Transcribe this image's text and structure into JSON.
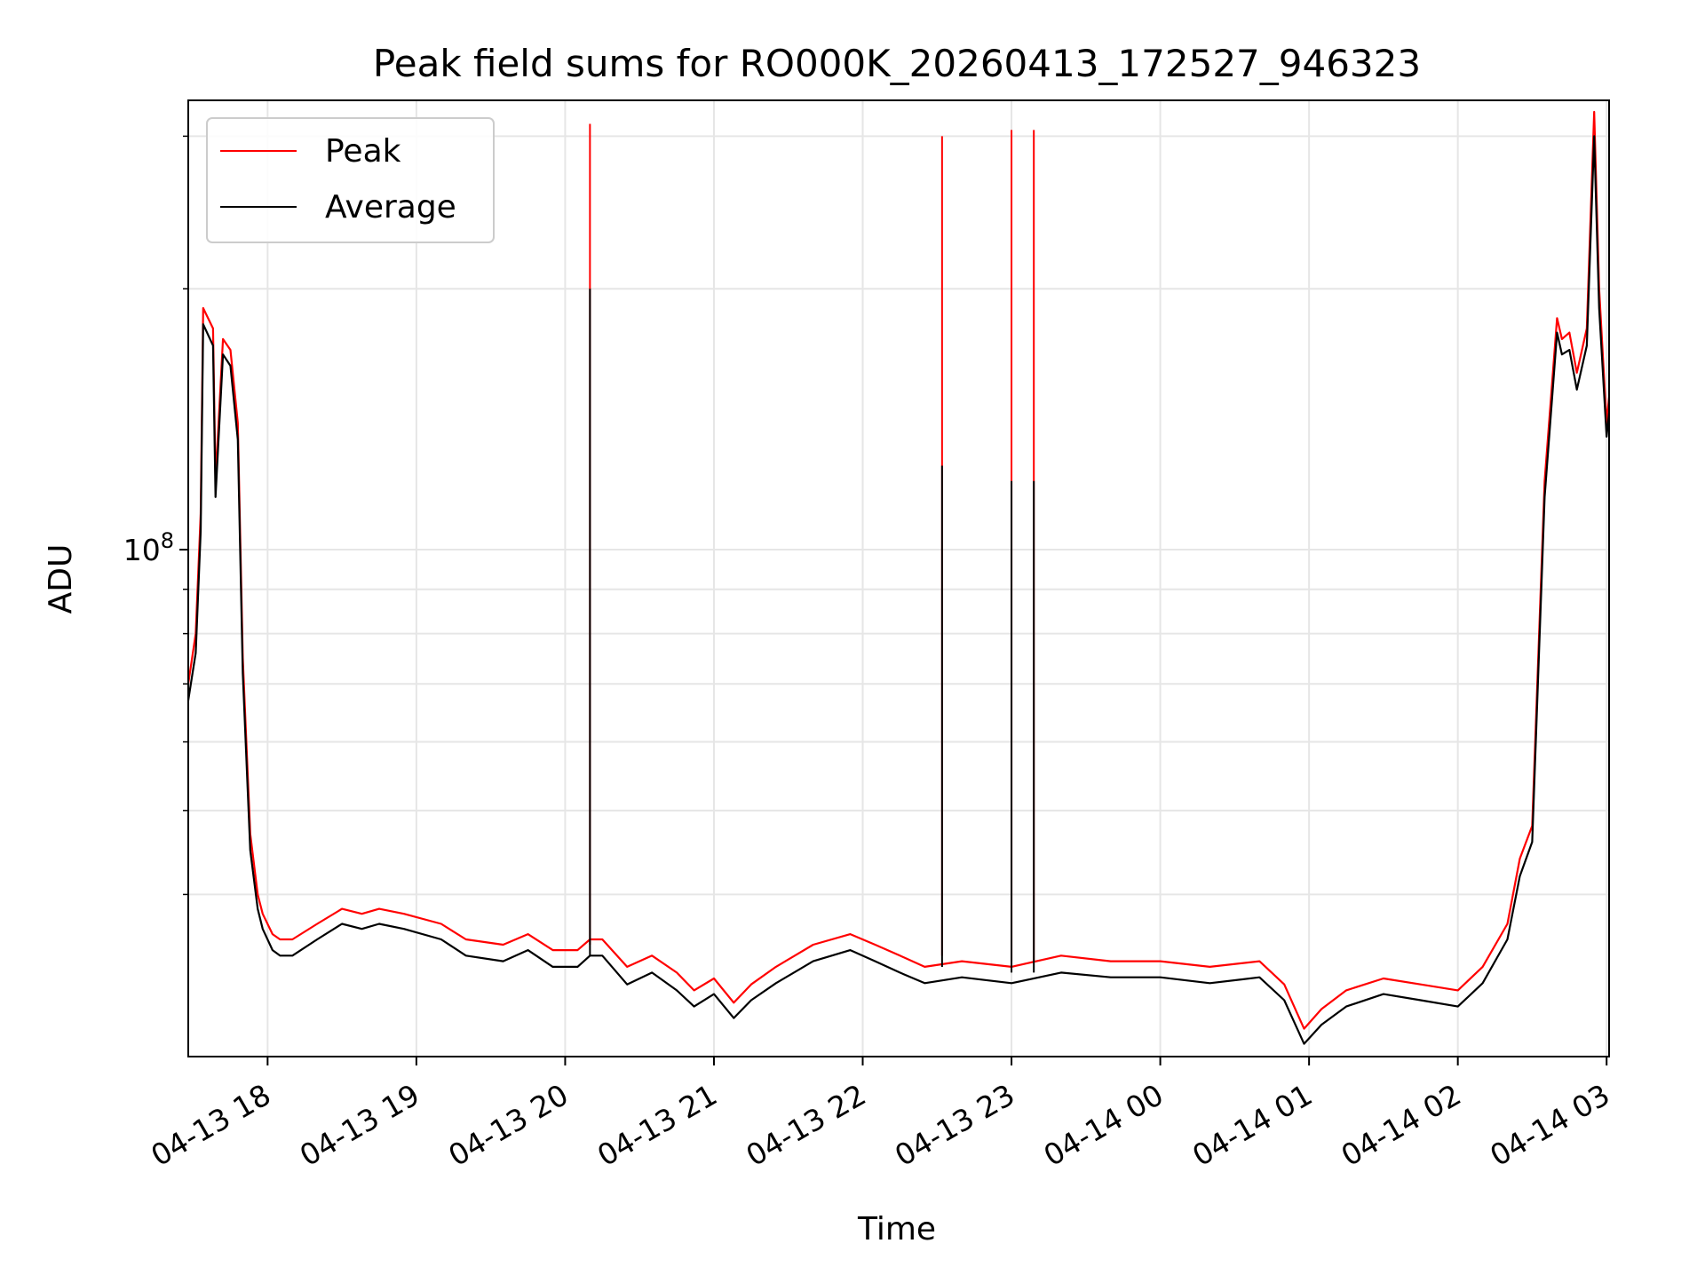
{
  "chart_data": {
    "type": "line",
    "title": "Peak field sums for RO000K_20260413_172527_946323",
    "xlabel": "Time",
    "ylabel": "ADU",
    "y_scale": "log",
    "ylim": [
      26000000,
      330000000
    ],
    "xlim": [
      "2026-04-13 17:28",
      "2026-04-14 03:01"
    ],
    "x_tick_labels": [
      "04-13 18",
      "04-13 19",
      "04-13 20",
      "04-13 21",
      "04-13 22",
      "04-13 23",
      "04-14 00",
      "04-14 01",
      "04-14 02",
      "04-14 03"
    ],
    "x_tick_times": [
      "2026-04-13 18:00",
      "2026-04-13 19:00",
      "2026-04-13 20:00",
      "2026-04-13 21:00",
      "2026-04-13 22:00",
      "2026-04-13 23:00",
      "2026-04-14 00:00",
      "2026-04-14 01:00",
      "2026-04-14 02:00",
      "2026-04-14 03:00"
    ],
    "y_major_ticks": [
      {
        "value": 100000000,
        "base": "10",
        "exp": "8"
      }
    ],
    "y_minor_ticks": [
      40000000,
      50000000,
      60000000,
      70000000,
      80000000,
      90000000,
      200000000,
      300000000
    ],
    "grid": true,
    "legend": {
      "placement": "top-left",
      "entries": [
        {
          "label": "Peak",
          "color": "#ff0000"
        },
        {
          "label": "Average",
          "color": "#000000"
        }
      ]
    },
    "series": [
      {
        "name": "Peak",
        "color": "#ff0000",
        "x": [
          "2026-04-13 17:28",
          "2026-04-13 17:31",
          "2026-04-13 17:33",
          "2026-04-13 17:34",
          "2026-04-13 17:38",
          "2026-04-13 17:39",
          "2026-04-13 17:42",
          "2026-04-13 17:45",
          "2026-04-13 17:48",
          "2026-04-13 17:50",
          "2026-04-13 17:53",
          "2026-04-13 17:56",
          "2026-04-13 17:58",
          "2026-04-13 18:02",
          "2026-04-13 18:05",
          "2026-04-13 18:10",
          "2026-04-13 18:20",
          "2026-04-13 18:30",
          "2026-04-13 18:38",
          "2026-04-13 18:45",
          "2026-04-13 18:55",
          "2026-04-13 19:10",
          "2026-04-13 19:20",
          "2026-04-13 19:35",
          "2026-04-13 19:45",
          "2026-04-13 19:55",
          "2026-04-13 20:05",
          "2026-04-13 20:10",
          "2026-04-13 20:15",
          "2026-04-13 20:25",
          "2026-04-13 20:35",
          "2026-04-13 20:45",
          "2026-04-13 20:52",
          "2026-04-13 21:00",
          "2026-04-13 21:08",
          "2026-04-13 21:15",
          "2026-04-13 21:25",
          "2026-04-13 21:40",
          "2026-04-13 21:55",
          "2026-04-13 22:05",
          "2026-04-13 22:15",
          "2026-04-13 22:25",
          "2026-04-13 22:40",
          "2026-04-13 23:00",
          "2026-04-13 23:20",
          "2026-04-13 23:40",
          "2026-04-14 00:00",
          "2026-04-14 00:20",
          "2026-04-14 00:40",
          "2026-04-14 00:50",
          "2026-04-14 00:58",
          "2026-04-14 01:05",
          "2026-04-14 01:15",
          "2026-04-14 01:30",
          "2026-04-14 01:45",
          "2026-04-14 02:00",
          "2026-04-14 02:10",
          "2026-04-14 02:20",
          "2026-04-14 02:25",
          "2026-04-14 02:30",
          "2026-04-14 02:35",
          "2026-04-14 02:40",
          "2026-04-14 02:42",
          "2026-04-14 02:45",
          "2026-04-14 02:48",
          "2026-04-14 02:52",
          "2026-04-14 02:55",
          "2026-04-14 02:57",
          "2026-04-14 03:00",
          "2026-04-14 03:01"
        ],
        "y": [
          70000000,
          80000000,
          110000000,
          190000000,
          180000000,
          120000000,
          175000000,
          170000000,
          140000000,
          75000000,
          47000000,
          40000000,
          38000000,
          36000000,
          35500000,
          35500000,
          37000000,
          38500000,
          38000000,
          38500000,
          38000000,
          37000000,
          35500000,
          35000000,
          36000000,
          34500000,
          34500000,
          35500000,
          35500000,
          33000000,
          34000000,
          32500000,
          31000000,
          32000000,
          30000000,
          31500000,
          33000000,
          35000000,
          36000000,
          35000000,
          34000000,
          33000000,
          33500000,
          33000000,
          34000000,
          33500000,
          33500000,
          33000000,
          33500000,
          31500000,
          28000000,
          29500000,
          31000000,
          32000000,
          31500000,
          31000000,
          33000000,
          37000000,
          44000000,
          48000000,
          120000000,
          185000000,
          175000000,
          178000000,
          160000000,
          180000000,
          320000000,
          200000000,
          140000000,
          150000000
        ]
      },
      {
        "name": "Average",
        "color": "#000000",
        "x": [
          "2026-04-13 17:28",
          "2026-04-13 17:31",
          "2026-04-13 17:33",
          "2026-04-13 17:34",
          "2026-04-13 17:38",
          "2026-04-13 17:39",
          "2026-04-13 17:42",
          "2026-04-13 17:45",
          "2026-04-13 17:48",
          "2026-04-13 17:50",
          "2026-04-13 17:53",
          "2026-04-13 17:56",
          "2026-04-13 17:58",
          "2026-04-13 18:02",
          "2026-04-13 18:05",
          "2026-04-13 18:10",
          "2026-04-13 18:20",
          "2026-04-13 18:30",
          "2026-04-13 18:38",
          "2026-04-13 18:45",
          "2026-04-13 18:55",
          "2026-04-13 19:10",
          "2026-04-13 19:20",
          "2026-04-13 19:35",
          "2026-04-13 19:45",
          "2026-04-13 19:55",
          "2026-04-13 20:05",
          "2026-04-13 20:10",
          "2026-04-13 20:15",
          "2026-04-13 20:25",
          "2026-04-13 20:35",
          "2026-04-13 20:45",
          "2026-04-13 20:52",
          "2026-04-13 21:00",
          "2026-04-13 21:08",
          "2026-04-13 21:15",
          "2026-04-13 21:25",
          "2026-04-13 21:40",
          "2026-04-13 21:55",
          "2026-04-13 22:05",
          "2026-04-13 22:15",
          "2026-04-13 22:25",
          "2026-04-13 22:40",
          "2026-04-13 23:00",
          "2026-04-13 23:20",
          "2026-04-13 23:40",
          "2026-04-14 00:00",
          "2026-04-14 00:20",
          "2026-04-14 00:40",
          "2026-04-14 00:50",
          "2026-04-14 00:58",
          "2026-04-14 01:05",
          "2026-04-14 01:15",
          "2026-04-14 01:30",
          "2026-04-14 01:45",
          "2026-04-14 02:00",
          "2026-04-14 02:10",
          "2026-04-14 02:20",
          "2026-04-14 02:25",
          "2026-04-14 02:30",
          "2026-04-14 02:35",
          "2026-04-14 02:40",
          "2026-04-14 02:42",
          "2026-04-14 02:45",
          "2026-04-14 02:48",
          "2026-04-14 02:52",
          "2026-04-14 02:55",
          "2026-04-14 02:57",
          "2026-04-14 03:00",
          "2026-04-14 03:01"
        ],
        "y": [
          67000000,
          76000000,
          105000000,
          182000000,
          172000000,
          115000000,
          168000000,
          163000000,
          134000000,
          72000000,
          45000000,
          38500000,
          36500000,
          34500000,
          34000000,
          34000000,
          35500000,
          37000000,
          36500000,
          37000000,
          36500000,
          35500000,
          34000000,
          33500000,
          34500000,
          33000000,
          33000000,
          34000000,
          34000000,
          31500000,
          32500000,
          31000000,
          29700000,
          30700000,
          28800000,
          30200000,
          31600000,
          33500000,
          34500000,
          33500000,
          32500000,
          31600000,
          32100000,
          31600000,
          32500000,
          32100000,
          32100000,
          31600000,
          32100000,
          30200000,
          26900000,
          28300000,
          29700000,
          30700000,
          30200000,
          29700000,
          31600000,
          35500000,
          42000000,
          46000000,
          115000000,
          178000000,
          168000000,
          170000000,
          153000000,
          172000000,
          300000000,
          190000000,
          135000000,
          144000000
        ]
      }
    ],
    "spikes": [
      {
        "series": "Peak",
        "x": "2026-04-13 20:10",
        "from": 35000000,
        "to": 310000000
      },
      {
        "series": "Average",
        "x": "2026-04-13 20:10",
        "from": 34000000,
        "to": 200000000
      },
      {
        "series": "Peak",
        "x": "2026-04-13 22:32",
        "from": 34000000,
        "to": 300000000
      },
      {
        "series": "Average",
        "x": "2026-04-13 22:32",
        "from": 33000000,
        "to": 125000000
      },
      {
        "series": "Peak",
        "x": "2026-04-13 23:00",
        "from": 33500000,
        "to": 305000000
      },
      {
        "series": "Average",
        "x": "2026-04-13 23:00",
        "from": 32500000,
        "to": 120000000
      },
      {
        "series": "Peak",
        "x": "2026-04-13 23:09",
        "from": 33500000,
        "to": 305000000
      },
      {
        "series": "Average",
        "x": "2026-04-13 23:09",
        "from": 32500000,
        "to": 120000000
      }
    ]
  }
}
